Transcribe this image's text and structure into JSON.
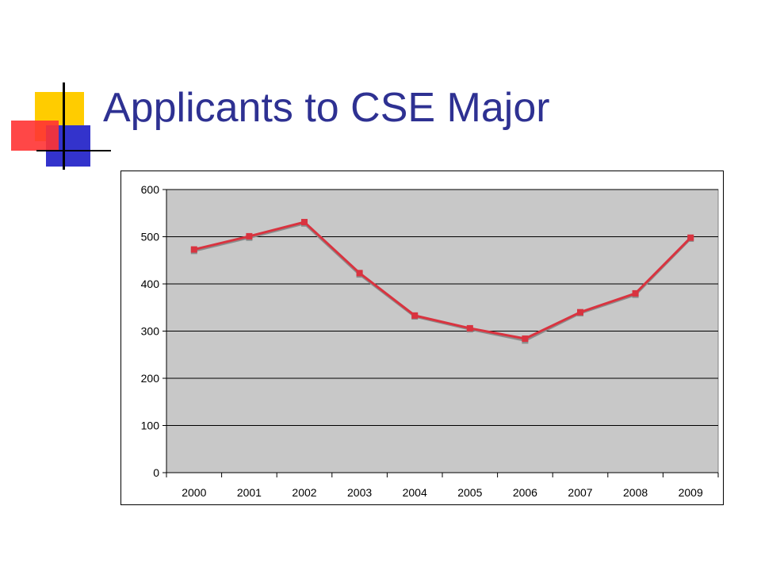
{
  "slide": {
    "title": "Applicants to CSE Major"
  },
  "colors": {
    "title": "#2E3192",
    "plot_area": "#C8C8C8",
    "series_front": "#D9333F",
    "series_back": "#8C8C8C",
    "accent_yellow": "#FFCC00",
    "accent_blue": "#3333CC",
    "accent_red": "#FF3333"
  },
  "chart_data": {
    "type": "line",
    "title": "",
    "xlabel": "",
    "ylabel": "",
    "categories": [
      "2000",
      "2001",
      "2002",
      "2003",
      "2004",
      "2005",
      "2006",
      "2007",
      "2008",
      "2009"
    ],
    "series": [
      {
        "values": [
          470,
          498,
          528,
          420,
          331,
          304,
          280,
          338,
          377,
          496
        ]
      },
      {
        "values": [
          473,
          501,
          531,
          423,
          333,
          306,
          284,
          340,
          380,
          498
        ]
      }
    ],
    "ylim": [
      0,
      600
    ],
    "yticks": [
      0,
      100,
      200,
      300,
      400,
      500,
      600
    ],
    "grid": true,
    "legend": "none"
  }
}
